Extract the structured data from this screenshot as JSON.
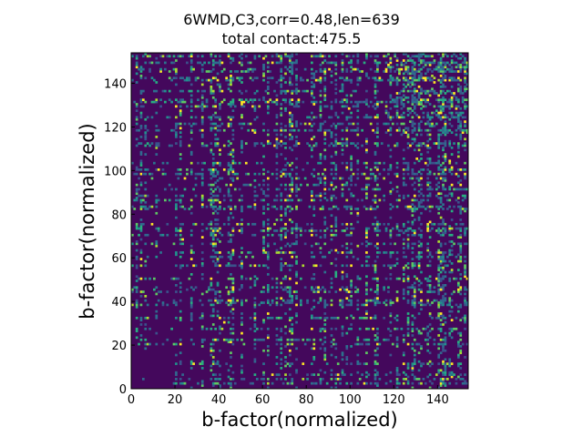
{
  "chart_data": {
    "type": "heatmap",
    "title": "6WMD,C3,corr=0.48,len=639",
    "subtitle": "total contact:475.5",
    "xlabel": "b-factor(normalized)",
    "ylabel": "b-factor(normalized)",
    "xlim": [
      0,
      154
    ],
    "ylim": [
      0,
      154
    ],
    "xticks": [
      "0",
      "20",
      "40",
      "60",
      "80",
      "100",
      "120",
      "140"
    ],
    "yticks": [
      "0",
      "20",
      "40",
      "60",
      "80",
      "100",
      "120",
      "140"
    ],
    "grid": false,
    "colormap": "viridis",
    "background_color": "#44085c",
    "active_rows": [
      2,
      4,
      6,
      11,
      20,
      22,
      27,
      32,
      38,
      39,
      40,
      44,
      45,
      46,
      50,
      56,
      60,
      62,
      66,
      70,
      72,
      73,
      75,
      82,
      83,
      86,
      88,
      91,
      93,
      96,
      98,
      100,
      103,
      111,
      112,
      118,
      121,
      124,
      129,
      131,
      132,
      136,
      141,
      142,
      145,
      146,
      149,
      152
    ],
    "active_cols": [
      2,
      4,
      6,
      11,
      20,
      22,
      27,
      32,
      36,
      37,
      38,
      39,
      40,
      44,
      45,
      46,
      50,
      56,
      60,
      62,
      66,
      68,
      70,
      72,
      73,
      75,
      82,
      83,
      86,
      88,
      91,
      93,
      96,
      98,
      100,
      103,
      107,
      111,
      112,
      118,
      121,
      124,
      126,
      128,
      129,
      131,
      132,
      135,
      136,
      140,
      141,
      142,
      143,
      145,
      146,
      149,
      150,
      152
    ],
    "bright_cells": [
      [
        37,
        142
      ],
      [
        45,
        143
      ],
      [
        38,
        129
      ],
      [
        99,
        128
      ],
      [
        46,
        99
      ],
      [
        69,
        98
      ],
      [
        83,
        130
      ],
      [
        98,
        101
      ],
      [
        140,
        134
      ],
      [
        141,
        126
      ],
      [
        88,
        96
      ],
      [
        112,
        130
      ],
      [
        129,
        88
      ],
      [
        40,
        85
      ],
      [
        98,
        75
      ],
      [
        70,
        75
      ],
      [
        73,
        60
      ],
      [
        99,
        44
      ],
      [
        112,
        41
      ],
      [
        132,
        40
      ],
      [
        141,
        45
      ],
      [
        85,
        46
      ],
      [
        62,
        34
      ],
      [
        42,
        30
      ],
      [
        37,
        66
      ],
      [
        28,
        56
      ],
      [
        23,
        68
      ],
      [
        152,
        98
      ],
      [
        150,
        100
      ],
      [
        130,
        105
      ]
    ]
  }
}
